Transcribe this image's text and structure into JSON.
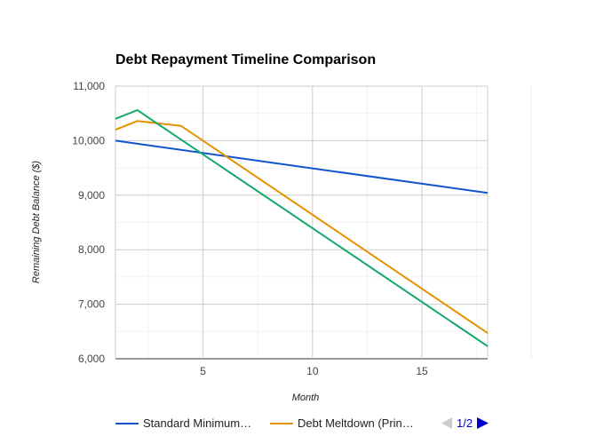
{
  "chart_data": {
    "type": "line",
    "title": "Debt Repayment Timeline Comparison",
    "xlabel": "Month",
    "ylabel": "Remaining Debt Balance ($)",
    "xlim": [
      1,
      18
    ],
    "ylim": [
      6000,
      11000
    ],
    "x_ticks": [
      5,
      10,
      15
    ],
    "y_ticks": [
      6000,
      7000,
      8000,
      9000,
      10000,
      11000
    ],
    "y_tick_labels": [
      "6,000",
      "7,000",
      "8,000",
      "9,000",
      "10,000",
      "11,000"
    ],
    "grid": true,
    "legend_position": "bottom",
    "series": [
      {
        "name": "Standard Minimum…",
        "color": "#1155cc",
        "x": [
          1,
          18
        ],
        "values": [
          10000,
          9040
        ]
      },
      {
        "name": "Debt Meltdown (Prin…",
        "color": "#e69100",
        "x": [
          1,
          2,
          4,
          18
        ],
        "values": [
          10200,
          10360,
          10270,
          6470
        ]
      },
      {
        "name": "",
        "color": "#16a86b",
        "x": [
          1,
          2,
          18
        ],
        "values": [
          10400,
          10560,
          6230
        ]
      }
    ]
  },
  "legend": {
    "pager_label": "1/2",
    "prev_icon": "triangle-left",
    "next_icon": "triangle-right",
    "prev_color": "#cccccc",
    "next_color": "#0000cc"
  }
}
